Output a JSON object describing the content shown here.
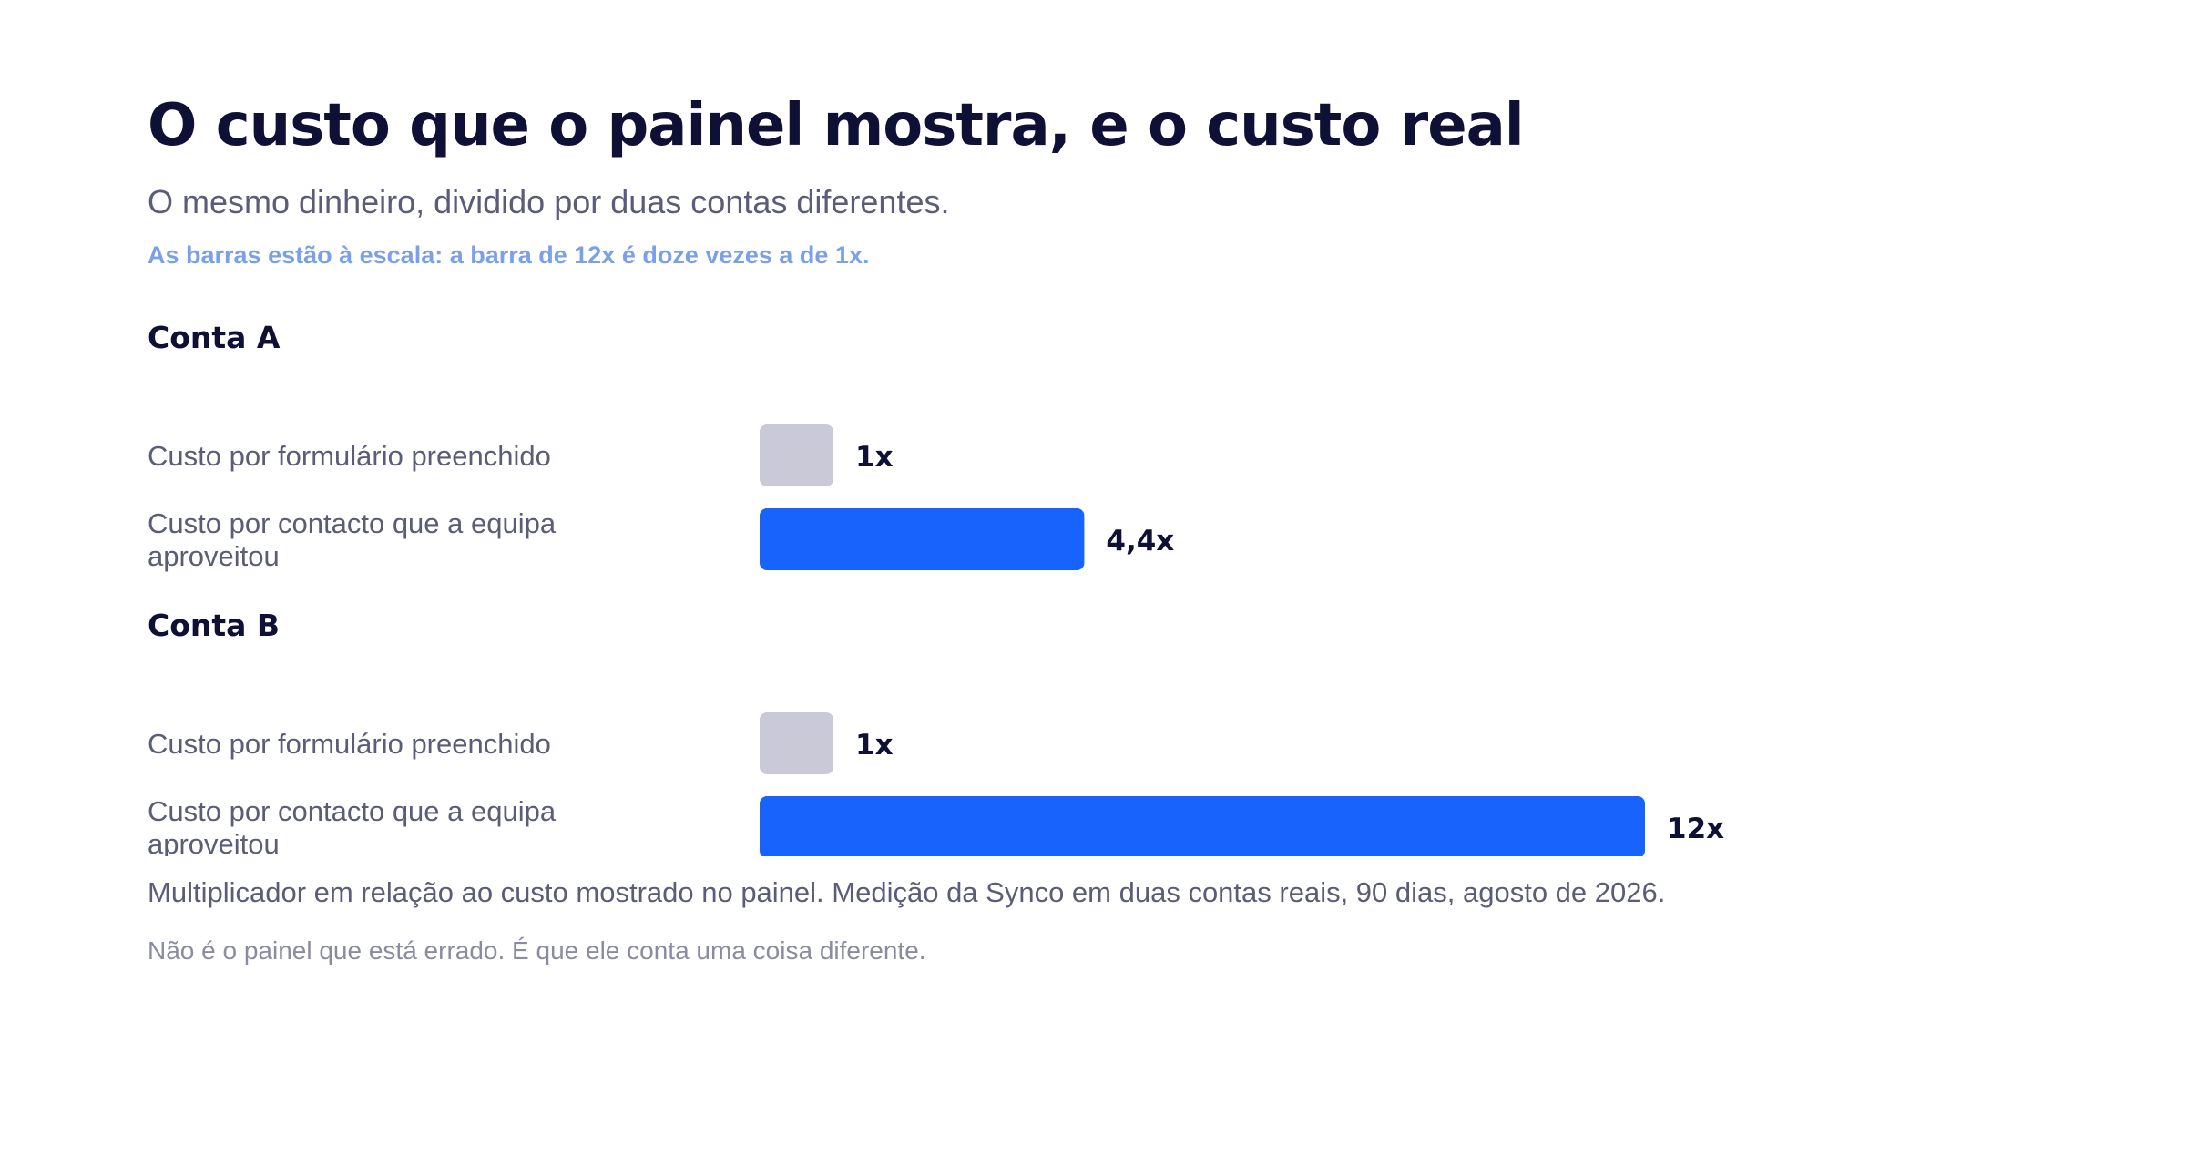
{
  "title": "O custo que o painel mostra, e o custo real",
  "subtitle": "O mesmo dinheiro, dividido por duas contas diferentes.",
  "scale_note": "As barras estão à escala: a barra de 12x é doze vezes a de 1x.",
  "footnote": "Multiplicador em relação ao custo mostrado no painel. Medição da Synco em duas contas reais, 90 dias, agosto de 2026.",
  "footnote_secondary": "Não é o painel que está errado. É que ele conta uma coisa diferente.",
  "colors": {
    "baseline_bar": "#c9c9d8",
    "highlight_bar": "#1863fb",
    "group_title": "#0f1035",
    "row_label": "#5b5c78",
    "value_label": "#0f1035"
  },
  "chart_data": {
    "type": "bar",
    "orientation": "horizontal",
    "xlim": [
      0,
      12
    ],
    "groups": [
      {
        "name": "Conta A",
        "bars": [
          {
            "label": "Custo por formulário preenchido",
            "value": 1,
            "value_label": "1x",
            "color": "#c9c9d8"
          },
          {
            "label": "Custo por contacto que a equipa aproveitou",
            "value": 4.4,
            "value_label": "4,4x",
            "color": "#1863fb"
          }
        ]
      },
      {
        "name": "Conta B",
        "bars": [
          {
            "label": "Custo por formulário preenchido",
            "value": 1,
            "value_label": "1x",
            "color": "#c9c9d8"
          },
          {
            "label": "Custo por contacto que a equipa aproveitou",
            "value": 12,
            "value_label": "12x",
            "color": "#1863fb"
          }
        ]
      }
    ]
  }
}
